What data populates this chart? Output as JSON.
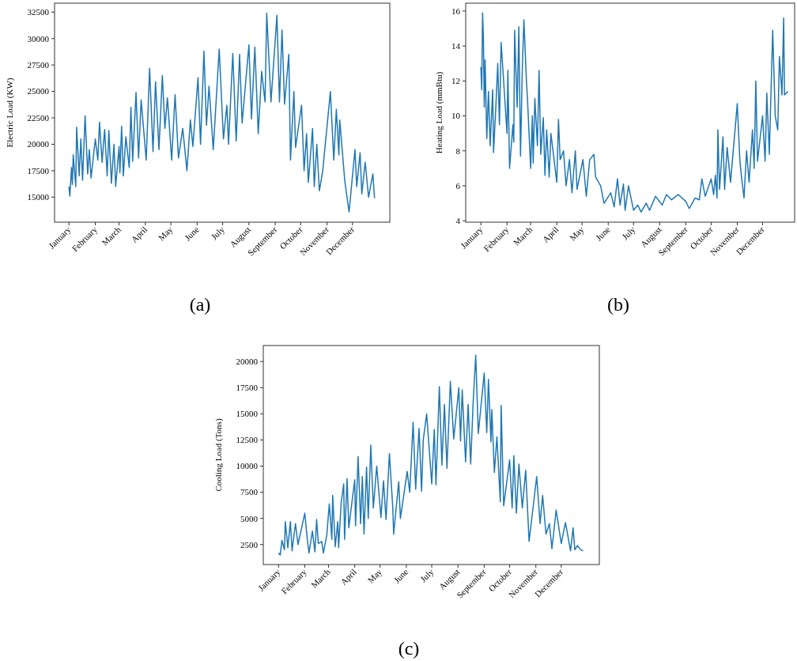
{
  "chart_data": [
    {
      "type": "line",
      "ylabel": "Electric Load (KW)",
      "annotations": [
        "(a)"
      ],
      "xlim": [
        "2000-12-15",
        "2002-01-14"
      ],
      "ylim": [
        12630,
        33350
      ],
      "yticks": [
        15000,
        17500,
        20000,
        22500,
        25000,
        27500,
        30000,
        32500
      ],
      "xticks": [
        {
          "value": "--01-01",
          "label": "January"
        },
        {
          "value": "--02-01",
          "label": "February"
        },
        {
          "value": "--03-01",
          "label": "March"
        },
        {
          "value": "--04-01",
          "label": "April"
        },
        {
          "value": "--05-01",
          "label": "May"
        },
        {
          "value": "--06-01",
          "label": "June"
        },
        {
          "value": "--07-01",
          "label": "July"
        },
        {
          "value": "--08-01",
          "label": "August"
        },
        {
          "value": "--09-01",
          "label": "September"
        },
        {
          "value": "--10-01",
          "label": "October"
        },
        {
          "value": "--11-01",
          "label": "November"
        },
        {
          "value": "--12-01",
          "label": "December"
        }
      ],
      "grid": false,
      "series": [
        {
          "color": "#1f77b4",
          "x": [
            "--01-01",
            "--01-02",
            "--01-04",
            "--01-05",
            "--01-06",
            "--01-09",
            "--01-10",
            "--01-13",
            "--01-15",
            "--01-17",
            "--01-20",
            "--01-23",
            "--01-25",
            "--01-27",
            "--02-01",
            "--02-04",
            "--02-06",
            "--02-09",
            "--02-12",
            "--02-15",
            "--02-17",
            "--02-20",
            "--02-23",
            "--02-25",
            "--03-01",
            "--03-02",
            "--03-04",
            "--03-06",
            "--03-09",
            "--03-13",
            "--03-15",
            "--03-17",
            "--03-21",
            "--03-24",
            "--03-27",
            "--04-02",
            "--04-06",
            "--04-10",
            "--04-13",
            "--04-17",
            "--04-21",
            "--04-24",
            "--04-27",
            "--05-02",
            "--05-06",
            "--05-10",
            "--05-15",
            "--05-20",
            "--05-24",
            "--05-27",
            "--06-02",
            "--06-05",
            "--06-09",
            "--06-12",
            "--06-15",
            "--06-20",
            "--06-27",
            "--07-02",
            "--07-06",
            "--07-08",
            "--07-13",
            "--07-17",
            "--07-21",
            "--07-24",
            "--08-01",
            "--08-04",
            "--08-08",
            "--08-12",
            "--08-16",
            "--08-20",
            "--08-22",
            "--08-27",
            "--09-03",
            "--09-06",
            "--09-09",
            "--09-12",
            "--09-17",
            "--09-19",
            "--09-23",
            "--09-25",
            "--10-02",
            "--10-05",
            "--10-08",
            "--10-10",
            "--10-15",
            "--10-17",
            "--10-20",
            "--10-23",
            "--10-27",
            "--11-05",
            "--11-09",
            "--11-12",
            "--11-15",
            "--11-16",
            "--11-22",
            "--11-27",
            "--12-04",
            "--12-06",
            "--12-10",
            "--12-12",
            "--12-16",
            "--12-20",
            "--12-25",
            "--12-27"
          ],
          "values": [
            16000,
            15100,
            17800,
            16200,
            19000,
            16000,
            21600,
            17000,
            20500,
            16600,
            22700,
            17200,
            19500,
            16800,
            20500,
            18500,
            22100,
            18300,
            21400,
            17000,
            21300,
            16300,
            20000,
            16000,
            19800,
            17300,
            21700,
            17000,
            20700,
            17800,
            23500,
            18400,
            24900,
            18700,
            24200,
            18500,
            27200,
            19300,
            25900,
            19500,
            26500,
            21500,
            24400,
            18500,
            24700,
            18700,
            21500,
            17500,
            22300,
            19800,
            26300,
            20000,
            28800,
            21800,
            25500,
            19500,
            29000,
            20500,
            23700,
            20000,
            28600,
            20300,
            28500,
            22000,
            29400,
            22400,
            29200,
            21000,
            26900,
            24000,
            32400,
            24000,
            32200,
            24000,
            30800,
            23800,
            28500,
            18500,
            25000,
            19700,
            23700,
            17500,
            21000,
            16400,
            21500,
            16000,
            20000,
            15600,
            17500,
            25000,
            18500,
            23300,
            19000,
            22300,
            16500,
            13600,
            19500,
            16000,
            19200,
            15300,
            18300,
            15000,
            17200,
            14900
          ]
        }
      ]
    },
    {
      "type": "line",
      "ylabel": "Heating Load (mmBtu)",
      "annotations": [
        "(b)"
      ],
      "xlim": [
        "2000-12-14",
        "2002-01-08"
      ],
      "ylim": [
        3.92,
        16.45
      ],
      "yticks": [
        4,
        6,
        8,
        10,
        12,
        14,
        16
      ],
      "xticks": [
        {
          "value": "--01-01",
          "label": "January"
        },
        {
          "value": "--02-01",
          "label": "February"
        },
        {
          "value": "--03-01",
          "label": "March"
        },
        {
          "value": "--04-01",
          "label": "April"
        },
        {
          "value": "--05-01",
          "label": "May"
        },
        {
          "value": "--06-01",
          "label": "June"
        },
        {
          "value": "--07-01",
          "label": "July"
        },
        {
          "value": "--08-01",
          "label": "August"
        },
        {
          "value": "--09-01",
          "label": "September"
        },
        {
          "value": "--10-01",
          "label": "October"
        },
        {
          "value": "--11-01",
          "label": "November"
        },
        {
          "value": "--12-01",
          "label": "December"
        }
      ],
      "grid": false,
      "series": [
        {
          "color": "#1f77b4",
          "x": [
            "--01-01",
            "--01-02",
            "--01-03",
            "--01-04",
            "--01-05",
            "--01-06",
            "--01-08",
            "--01-10",
            "--01-12",
            "--01-15",
            "--01-16",
            "--01-19",
            "--01-21",
            "--01-23",
            "--01-25",
            "--02-01",
            "--02-02",
            "--02-04",
            "--02-08",
            "--02-09",
            "--02-10",
            "--02-13",
            "--02-15",
            "--02-17",
            "--02-19",
            "--02-21",
            "--02-24",
            "--02-25",
            "--03-01",
            "--03-03",
            "--03-04",
            "--03-06",
            "--03-09",
            "--03-11",
            "--03-13",
            "--03-16",
            "--03-18",
            "--03-20",
            "--03-23",
            "--03-25",
            "--04-01",
            "--04-03",
            "--04-05",
            "--04-09",
            "--04-12",
            "--04-16",
            "--04-19",
            "--04-23",
            "--04-25",
            "--05-02",
            "--05-06",
            "--05-10",
            "--05-15",
            "--05-17",
            "--05-23",
            "--05-27",
            "--06-04",
            "--06-08",
            "--06-12",
            "--06-15",
            "--06-19",
            "--06-21",
            "--06-25",
            "--07-01",
            "--07-06",
            "--07-10",
            "--07-16",
            "--07-20",
            "--07-27",
            "--08-04",
            "--08-09",
            "--08-15",
            "--08-23",
            "--09-01",
            "--09-05",
            "--09-12",
            "--09-17",
            "--09-20",
            "--09-24",
            "--10-01",
            "--10-04",
            "--10-06",
            "--10-08",
            "--10-09",
            "--10-11",
            "--10-15",
            "--10-17",
            "--10-20",
            "--10-24",
            "--11-01",
            "--11-04",
            "--11-06",
            "--11-09",
            "--11-12",
            "--11-15",
            "--11-19",
            "--11-21",
            "--11-23",
            "--11-25",
            "--12-01",
            "--12-04",
            "--12-06",
            "--12-09",
            "--12-13",
            "--12-16",
            "--12-19",
            "--12-21",
            "--12-24",
            "--12-26",
            "--12-27",
            "--12-31"
          ],
          "values": [
            12.8,
            11.5,
            15.9,
            14.5,
            10.5,
            13.2,
            8.7,
            11.4,
            8.3,
            11.5,
            7.9,
            10.8,
            13.0,
            9.5,
            14.2,
            9.0,
            12.6,
            7.0,
            9.5,
            8.5,
            14.9,
            10.5,
            15.1,
            7.7,
            12.5,
            15.5,
            12.0,
            11.2,
            7.0,
            10.0,
            7.3,
            11.0,
            8.3,
            12.6,
            7.8,
            9.9,
            6.6,
            9.2,
            6.5,
            9.0,
            6.2,
            9.8,
            7.5,
            8.0,
            6.0,
            7.5,
            5.6,
            8.0,
            5.8,
            7.5,
            5.4,
            7.5,
            7.8,
            6.5,
            6.0,
            5.0,
            5.6,
            4.8,
            6.4,
            4.9,
            6.1,
            4.6,
            6.0,
            4.6,
            4.9,
            4.5,
            5.0,
            4.6,
            5.4,
            4.9,
            5.5,
            5.2,
            5.5,
            5.1,
            4.7,
            5.3,
            5.2,
            6.4,
            5.4,
            6.4,
            5.5,
            6.6,
            5.3,
            9.2,
            5.8,
            8.8,
            5.8,
            8.2,
            6.2,
            10.7,
            7.5,
            6.5,
            5.3,
            8.0,
            6.2,
            9.2,
            7.0,
            12.0,
            7.4,
            10.0,
            7.4,
            11.3,
            7.8,
            14.9,
            10.0,
            9.2,
            13.4,
            11.2,
            15.6,
            11.2,
            11.4
          ]
        }
      ]
    },
    {
      "type": "line",
      "ylabel": "Cooling Load (Tons)",
      "annotations": [
        "(c)"
      ],
      "xlim": [
        "2000-12-14",
        "2002-01-15"
      ],
      "ylim": [
        590,
        21530
      ],
      "yticks": [
        2500,
        5000,
        7500,
        10000,
        12500,
        15000,
        17500,
        20000
      ],
      "xticks": [
        {
          "value": "--01-01",
          "label": "January"
        },
        {
          "value": "--02-01",
          "label": "February"
        },
        {
          "value": "--03-01",
          "label": "March"
        },
        {
          "value": "--04-01",
          "label": "April"
        },
        {
          "value": "--05-01",
          "label": "May"
        },
        {
          "value": "--06-01",
          "label": "June"
        },
        {
          "value": "--07-01",
          "label": "July"
        },
        {
          "value": "--08-01",
          "label": "August"
        },
        {
          "value": "--09-01",
          "label": "September"
        },
        {
          "value": "--10-01",
          "label": "October"
        },
        {
          "value": "--11-01",
          "label": "November"
        },
        {
          "value": "--12-01",
          "label": "December"
        }
      ],
      "grid": false,
      "series": [
        {
          "color": "#1f77b4",
          "x": [
            "--01-01",
            "--01-03",
            "--01-05",
            "--01-08",
            "--01-09",
            "--01-12",
            "--01-15",
            "--01-17",
            "--01-21",
            "--01-24",
            "--02-01",
            "--02-04",
            "--02-06",
            "--02-10",
            "--02-13",
            "--02-15",
            "--02-17",
            "--02-21",
            "--02-23",
            "--02-27",
            "--03-02",
            "--03-05",
            "--03-06",
            "--03-09",
            "--03-12",
            "--03-13",
            "--03-16",
            "--03-19",
            "--03-20",
            "--03-23",
            "--03-25",
            "--04-01",
            "--04-02",
            "--04-05",
            "--04-08",
            "--04-10",
            "--04-12",
            "--04-15",
            "--04-17",
            "--04-20",
            "--04-23",
            "--04-27",
            "--05-02",
            "--05-05",
            "--05-08",
            "--05-12",
            "--05-16",
            "--05-17",
            "--05-23",
            "--05-25",
            "--06-02",
            "--06-05",
            "--06-09",
            "--06-12",
            "--06-16",
            "--06-19",
            "--06-21",
            "--06-25",
            "--07-01",
            "--07-04",
            "--07-06",
            "--07-10",
            "--07-13",
            "--07-16",
            "--07-19",
            "--07-23",
            "--07-27",
            "--08-02",
            "--08-04",
            "--08-06",
            "--08-10",
            "--08-13",
            "--08-16",
            "--08-19",
            "--08-22",
            "--08-25",
            "--09-01",
            "--09-04",
            "--09-06",
            "--09-09",
            "--09-10",
            "--09-13",
            "--09-16",
            "--09-20",
            "--09-21",
            "--09-24",
            "--10-01",
            "--10-04",
            "--10-06",
            "--10-09",
            "--10-12",
            "--10-16",
            "--10-20",
            "--10-24",
            "--11-02",
            "--11-06",
            "--11-09",
            "--11-13",
            "--11-17",
            "--11-20",
            "--11-25",
            "--12-01",
            "--12-06",
            "--12-12",
            "--12-15",
            "--12-17",
            "--12-20",
            "--12-24",
            "--12-27"
          ],
          "values": [
            1700,
            1500,
            2900,
            2000,
            4700,
            2200,
            4700,
            1900,
            4500,
            2500,
            5500,
            3000,
            1700,
            3800,
            1800,
            4900,
            2600,
            2800,
            1700,
            3400,
            6400,
            3000,
            7200,
            2300,
            4700,
            2200,
            6500,
            8300,
            3000,
            8800,
            4100,
            8700,
            4300,
            10900,
            4500,
            9000,
            3500,
            9900,
            5000,
            12000,
            6000,
            10000,
            5100,
            8600,
            4900,
            11200,
            6000,
            3500,
            8500,
            5000,
            9500,
            7500,
            14200,
            7800,
            13600,
            7600,
            12500,
            15000,
            8300,
            13500,
            8200,
            17600,
            10100,
            15900,
            9800,
            18100,
            12600,
            17500,
            12400,
            17300,
            10400,
            15900,
            10200,
            16200,
            20600,
            13100,
            18900,
            13200,
            18300,
            12300,
            15400,
            9400,
            12800,
            6600,
            15800,
            6200,
            10600,
            6000,
            11000,
            5500,
            10200,
            6000,
            9600,
            2800,
            9000,
            4500,
            7200,
            3500,
            4500,
            2100,
            5800,
            2600,
            4600,
            1900,
            4100,
            2000,
            2400,
            2000,
            1900
          ]
        }
      ]
    }
  ]
}
